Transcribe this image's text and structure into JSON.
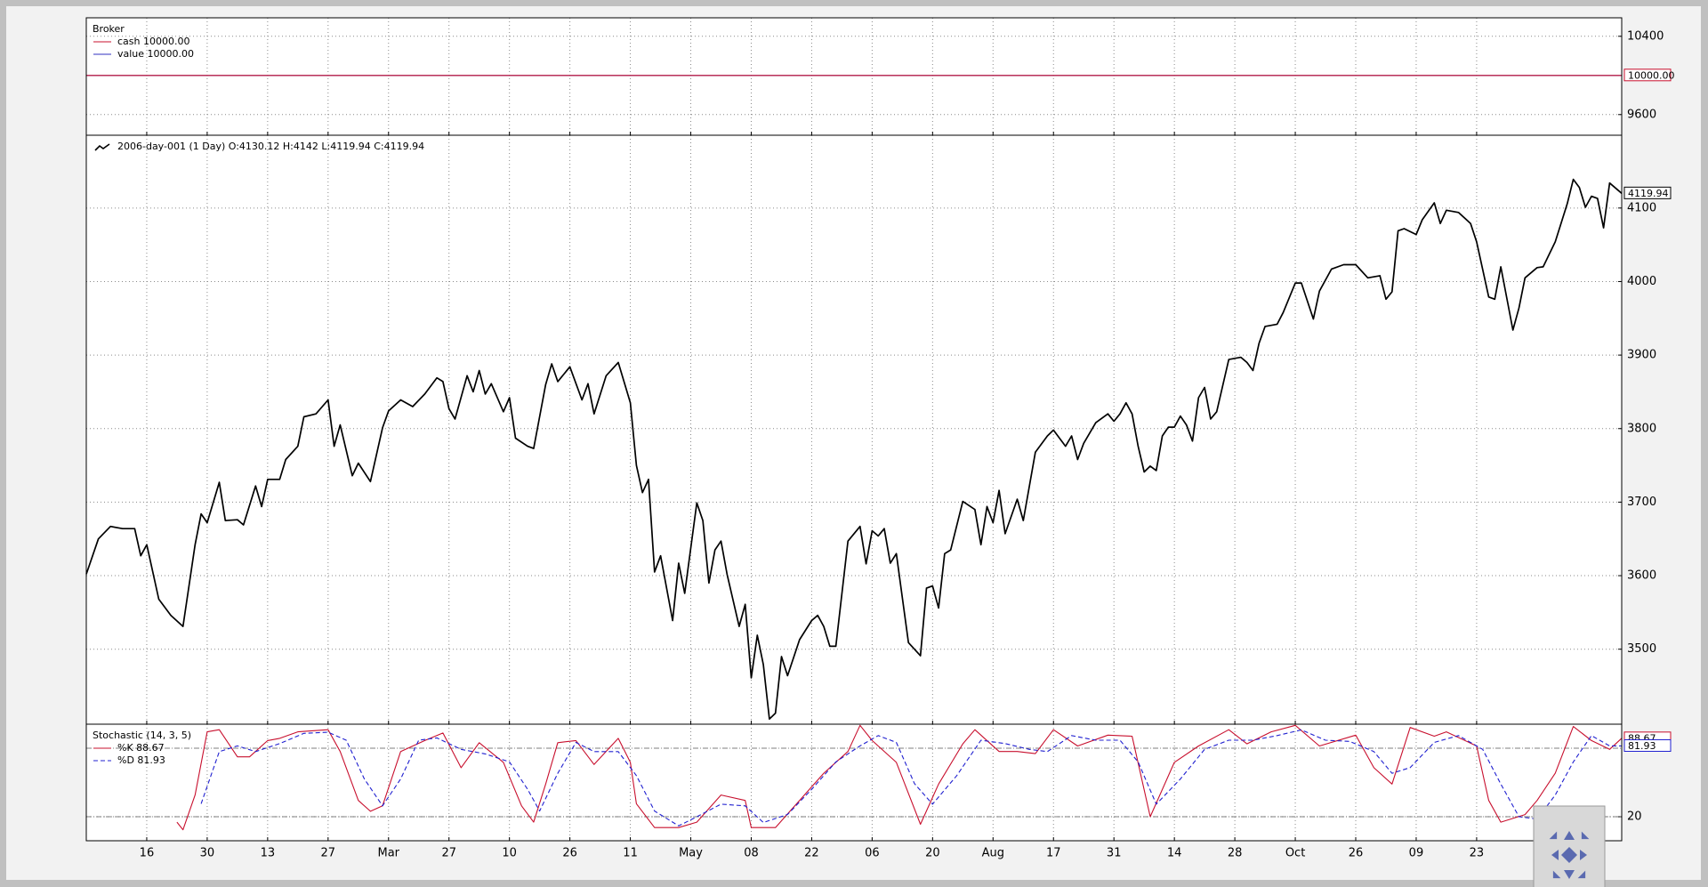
{
  "chart_data": [
    {
      "type": "line",
      "title": "Broker",
      "xlim": [
        0,
        254
      ],
      "xticks": [
        10,
        20,
        30,
        40,
        50,
        60,
        70,
        80,
        90,
        100,
        110,
        120,
        130,
        140,
        150,
        160,
        170,
        180,
        190,
        200,
        210,
        220,
        230
      ],
      "ylim": [
        9389,
        10589
      ],
      "yticks": [
        9600,
        10400
      ],
      "grid": true,
      "tag": "10000.00",
      "series": [
        {
          "name": "value 10000.00",
          "color": "#3030c0",
          "x": [
            0,
            254
          ],
          "values": [
            10000,
            10000
          ]
        },
        {
          "name": "cash 10000.00",
          "color": "#c8102e",
          "x": [
            0,
            254
          ],
          "values": [
            10000,
            10000
          ]
        }
      ]
    },
    {
      "type": "line",
      "xlim": [
        0,
        254
      ],
      "xticks": [
        10,
        20,
        30,
        40,
        50,
        60,
        70,
        80,
        90,
        100,
        110,
        120,
        130,
        140,
        150,
        160,
        170,
        180,
        190,
        200,
        210,
        220,
        230
      ],
      "ylim": [
        3398,
        4199
      ],
      "yticks": [
        3500,
        3600,
        3700,
        3800,
        3900,
        4000,
        4100
      ],
      "grid": true,
      "tag": "4119.94",
      "series": [
        {
          "name": "2006-day-001 (1 Day) O:4130.12 H:4142 L:4119.94 C:4119.94",
          "color": "#000000",
          "x": [
            0,
            2,
            4,
            6,
            8,
            9,
            10,
            12,
            14,
            16,
            18,
            19,
            20,
            22,
            23,
            25,
            26,
            28,
            29,
            30,
            32,
            33,
            35,
            36,
            38,
            40,
            41,
            42,
            44,
            45,
            47,
            49,
            50,
            52,
            54,
            56,
            58,
            59,
            60,
            61,
            63,
            64,
            65,
            66,
            67,
            69,
            70,
            71,
            73,
            74,
            76,
            77,
            78,
            80,
            82,
            83,
            84,
            86,
            88,
            90,
            91,
            92,
            93,
            94,
            95,
            97,
            98,
            99,
            101,
            102,
            103,
            104,
            105,
            106,
            108,
            109,
            110,
            111,
            112,
            113,
            114,
            115,
            116,
            118,
            120,
            121,
            122,
            123,
            124,
            126,
            128,
            129,
            130,
            131,
            132,
            133,
            134,
            136,
            138,
            139,
            140,
            141,
            142,
            143,
            145,
            147,
            148,
            149,
            150,
            151,
            152,
            154,
            155,
            157,
            159,
            160,
            162,
            163,
            164,
            165,
            167,
            169,
            170,
            171,
            172,
            173,
            174,
            175,
            176,
            177,
            178,
            179,
            180,
            181,
            182,
            183,
            184,
            185,
            186,
            187,
            189,
            191,
            192,
            193,
            194,
            195,
            197,
            198,
            200,
            201,
            203,
            204,
            206,
            208,
            210,
            212,
            214,
            215,
            216,
            217,
            218,
            220,
            221,
            223,
            224,
            225,
            227,
            229,
            230,
            232,
            233,
            234,
            236,
            237,
            238,
            240,
            241,
            243,
            245,
            246,
            247,
            248,
            249,
            250,
            251,
            252,
            254
          ],
          "values": [
            3602,
            3650,
            3667,
            3664,
            3664,
            3627,
            3642,
            3568,
            3546,
            3531,
            3642,
            3684,
            3672,
            3727,
            3675,
            3676,
            3669,
            3722,
            3694,
            3731,
            3731,
            3758,
            3776,
            3816,
            3820,
            3839,
            3776,
            3805,
            3736,
            3753,
            3728,
            3801,
            3824,
            3839,
            3830,
            3847,
            3869,
            3864,
            3827,
            3813,
            3872,
            3850,
            3879,
            3847,
            3861,
            3823,
            3842,
            3787,
            3776,
            3773,
            3860,
            3888,
            3864,
            3884,
            3839,
            3861,
            3820,
            3872,
            3890,
            3835,
            3750,
            3713,
            3731,
            3605,
            3627,
            3539,
            3617,
            3576,
            3699,
            3675,
            3590,
            3635,
            3647,
            3602,
            3531,
            3561,
            3461,
            3519,
            3479,
            3405,
            3413,
            3490,
            3464,
            3513,
            3539,
            3546,
            3531,
            3504,
            3504,
            3647,
            3667,
            3616,
            3661,
            3654,
            3664,
            3617,
            3630,
            3509,
            3491,
            3583,
            3586,
            3556,
            3630,
            3635,
            3701,
            3690,
            3642,
            3694,
            3672,
            3716,
            3657,
            3704,
            3675,
            3768,
            3790,
            3798,
            3776,
            3790,
            3758,
            3780,
            3808,
            3820,
            3810,
            3820,
            3835,
            3820,
            3776,
            3741,
            3749,
            3743,
            3790,
            3802,
            3802,
            3817,
            3805,
            3783,
            3842,
            3856,
            3813,
            3823,
            3894,
            3897,
            3890,
            3879,
            3916,
            3939,
            3942,
            3958,
            3998,
            3998,
            3949,
            3987,
            4017,
            4023,
            4023,
            4005,
            4008,
            3976,
            3986,
            4069,
            4072,
            4064,
            4084,
            4107,
            4079,
            4097,
            4094,
            4079,
            4054,
            3979,
            3976,
            4020,
            3934,
            3964,
            4005,
            4019,
            4020,
            4054,
            4106,
            4139,
            4128,
            4101,
            4116,
            4113,
            4073,
            4134,
            4119.94
          ]
        }
      ]
    },
    {
      "type": "line",
      "title": "Stochastic (14, 3, 5)",
      "xlim": [
        0,
        254
      ],
      "xticks": [
        {
          "value": 10,
          "label": "16"
        },
        {
          "value": 20,
          "label": "30"
        },
        {
          "value": 30,
          "label": "13"
        },
        {
          "value": 40,
          "label": "27"
        },
        {
          "value": 50,
          "label": "Mar"
        },
        {
          "value": 60,
          "label": "27"
        },
        {
          "value": 70,
          "label": "10"
        },
        {
          "value": 80,
          "label": "26"
        },
        {
          "value": 90,
          "label": "11"
        },
        {
          "value": 100,
          "label": "May"
        },
        {
          "value": 110,
          "label": "08"
        },
        {
          "value": 120,
          "label": "22"
        },
        {
          "value": 130,
          "label": "06"
        },
        {
          "value": 140,
          "label": "20"
        },
        {
          "value": 150,
          "label": "Aug"
        },
        {
          "value": 160,
          "label": "17"
        },
        {
          "value": 170,
          "label": "31"
        },
        {
          "value": 180,
          "label": "14"
        },
        {
          "value": 190,
          "label": "28"
        },
        {
          "value": 200,
          "label": "Oct"
        },
        {
          "value": 210,
          "label": "26"
        },
        {
          "value": 220,
          "label": "09"
        },
        {
          "value": 230,
          "label": "23"
        }
      ],
      "ylim": [
        -1,
        101
      ],
      "yticks": [
        20
      ],
      "hlines": [
        20,
        80
      ],
      "grid": true,
      "series": [
        {
          "name": "%K 88.67",
          "color": "#c8102e",
          "tag": "88.67",
          "x": [
            15,
            16,
            18,
            20,
            22,
            25,
            27,
            30,
            32,
            35,
            40,
            42,
            45,
            47,
            49,
            52,
            56,
            59,
            62,
            65,
            69,
            72,
            74,
            76,
            78,
            81,
            84,
            88,
            90,
            91,
            94,
            98,
            101,
            105,
            109,
            110,
            114,
            118,
            122,
            126,
            128,
            130,
            134,
            138,
            141,
            145,
            147,
            151,
            154,
            157,
            160,
            164,
            169,
            173,
            176,
            180,
            184,
            189,
            192,
            196,
            200,
            204,
            210,
            213,
            216,
            219,
            223,
            225,
            230,
            232,
            234,
            238,
            240,
            243,
            246,
            249,
            252,
            254
          ],
          "values": [
            15.3,
            8.6,
            39,
            94.3,
            96.2,
            72.4,
            72.4,
            86.7,
            88.6,
            94.3,
            96.2,
            77.1,
            34.3,
            24.8,
            29.5,
            77.1,
            86.7,
            93.3,
            62.9,
            84.8,
            67.6,
            29.5,
            15.3,
            48.6,
            84.8,
            86.7,
            65.7,
            88.6,
            67.6,
            31.4,
            10.5,
            10.5,
            15.3,
            39,
            34.3,
            10.5,
            10.5,
            34.3,
            58.1,
            77.1,
            100,
            86.7,
            67.6,
            13.4,
            48.6,
            83.8,
            96.2,
            77.1,
            77.1,
            75.2,
            96.2,
            81.9,
            91.4,
            90.5,
            20,
            67.6,
            81.9,
            96.2,
            83.8,
            94.3,
            100,
            81.9,
            91.4,
            62.9,
            48.6,
            98.1,
            90.5,
            94.3,
            81.9,
            34.3,
            15.3,
            21.9,
            34.3,
            58.1,
            99,
            86.7,
            79,
            88.67
          ]
        },
        {
          "name": "%D 81.93",
          "color": "#2020d0",
          "dashed": true,
          "tag": "81.93",
          "x": [
            19,
            22,
            25,
            28,
            32,
            36,
            40,
            43,
            46,
            49,
            52,
            55,
            58,
            62,
            66,
            70,
            73,
            75,
            78,
            81,
            84,
            88,
            91,
            94,
            98,
            101,
            105,
            109,
            112,
            116,
            120,
            124,
            128,
            131,
            134,
            137,
            140,
            144,
            148,
            152,
            156,
            159,
            163,
            167,
            171,
            174,
            177,
            181,
            185,
            189,
            193,
            197,
            201,
            205,
            209,
            213,
            216,
            219,
            223,
            227,
            231,
            234,
            237,
            240,
            243,
            246,
            249,
            252,
            254
          ],
          "values": [
            31.4,
            77,
            82,
            77,
            84,
            93,
            94,
            87,
            53,
            29.5,
            53,
            87,
            89,
            79,
            75,
            68,
            44,
            25,
            58,
            85,
            77,
            77,
            56,
            25,
            12,
            20,
            31,
            29.5,
            15,
            22,
            44,
            68,
            82,
            91,
            85,
            49,
            31,
            56,
            87,
            84,
            79,
            77,
            91,
            87,
            87,
            68,
            31,
            53,
            79,
            87,
            87,
            91,
            96,
            87,
            86,
            77,
            58,
            63,
            85,
            91,
            79,
            48.6,
            20,
            18,
            39,
            68,
            91,
            82,
            81.93
          ]
        }
      ]
    }
  ]
}
